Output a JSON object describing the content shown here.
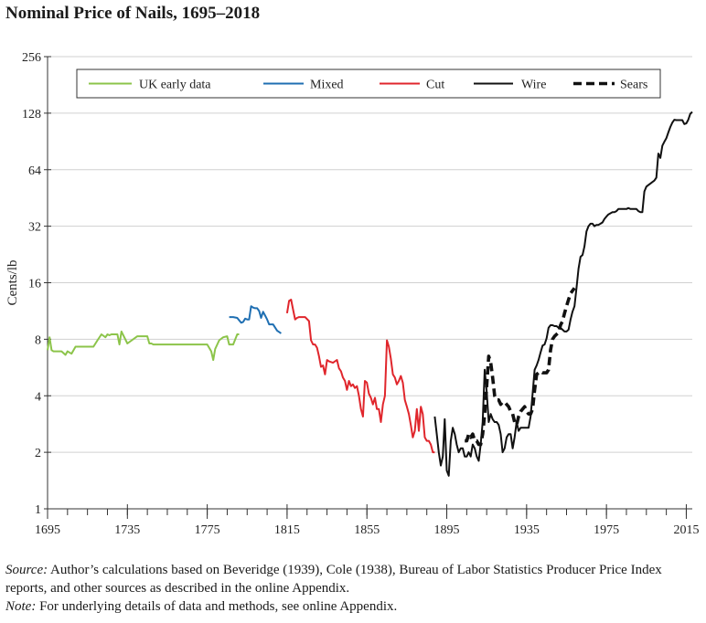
{
  "chart_data": {
    "type": "line",
    "title": "Nominal Price of Nails, 1695–2018",
    "xlabel": "",
    "ylabel": "Cents/lb",
    "yscale": "log2",
    "xlim": [
      1695,
      2018
    ],
    "ylim": [
      1,
      256
    ],
    "x_ticks": [
      "1695",
      "1735",
      "1775",
      "1815",
      "1855",
      "1895",
      "1935",
      "1975",
      "2015"
    ],
    "y_ticks": [
      "1",
      "2",
      "4",
      "8",
      "16",
      "32",
      "64",
      "128",
      "256"
    ],
    "grid": "horizontal",
    "legend_position": "top",
    "series": [
      {
        "name": "UK early data",
        "color": "#8cc44a",
        "dashed": false,
        "x": [
          1695,
          1696,
          1697,
          1698,
          1700,
          1702,
          1704,
          1705,
          1707,
          1709,
          1711,
          1713,
          1715,
          1716,
          1717,
          1718,
          1720,
          1722,
          1724,
          1725,
          1726,
          1727,
          1728,
          1729,
          1730,
          1731,
          1732,
          1735,
          1740,
          1745,
          1746,
          1747,
          1748,
          1750,
          1755,
          1760,
          1765,
          1770,
          1775,
          1777,
          1778,
          1779,
          1781,
          1783,
          1785,
          1786,
          1788,
          1790,
          1791
        ],
        "y": [
          7.0,
          8.2,
          7.0,
          6.9,
          6.9,
          6.9,
          6.6,
          6.9,
          6.7,
          7.3,
          7.3,
          7.3,
          7.3,
          7.3,
          7.3,
          7.3,
          7.9,
          8.5,
          8.2,
          8.5,
          8.4,
          8.5,
          8.5,
          8.5,
          8.5,
          7.5,
          8.8,
          7.6,
          8.3,
          8.3,
          7.6,
          7.6,
          7.5,
          7.5,
          7.5,
          7.5,
          7.5,
          7.5,
          7.5,
          6.9,
          6.2,
          7.1,
          7.9,
          8.2,
          8.3,
          7.5,
          7.5,
          8.5,
          8.5
        ]
      },
      {
        "name": "Mixed",
        "color": "#1f6fb2",
        "dashed": false,
        "x": [
          1786,
          1788,
          1790,
          1791,
          1792,
          1793,
          1794,
          1795,
          1796,
          1797,
          1798,
          1799,
          1800,
          1801,
          1802,
          1803,
          1804,
          1805,
          1806,
          1808,
          1810,
          1812
        ],
        "y": [
          10.5,
          10.5,
          10.4,
          10.1,
          9.8,
          9.9,
          10.3,
          10.2,
          10.2,
          12.0,
          11.8,
          11.7,
          11.7,
          11.3,
          10.4,
          11.2,
          10.7,
          10.2,
          9.6,
          9.6,
          8.9,
          8.6
        ]
      },
      {
        "name": "Cut",
        "color": "#e0262c",
        "dashed": false,
        "x": [
          1815,
          1816,
          1817,
          1818,
          1819,
          1820,
          1821,
          1822,
          1824,
          1826,
          1827,
          1828,
          1829,
          1830,
          1831,
          1832,
          1833,
          1834,
          1835,
          1836,
          1838,
          1840,
          1841,
          1842,
          1843,
          1844,
          1845,
          1846,
          1847,
          1848,
          1849,
          1850,
          1851,
          1852,
          1853,
          1854,
          1855,
          1856,
          1857,
          1858,
          1859,
          1860,
          1861,
          1862,
          1863,
          1864,
          1865,
          1866,
          1867,
          1868,
          1869,
          1870,
          1871,
          1872,
          1873,
          1874,
          1875,
          1876,
          1877,
          1878,
          1879,
          1880,
          1881,
          1882,
          1883,
          1884,
          1885,
          1886,
          1887,
          1888,
          1889
        ],
        "y": [
          11.0,
          12.8,
          13.0,
          11.5,
          10.2,
          10.4,
          10.5,
          10.5,
          10.5,
          10.0,
          7.9,
          7.5,
          7.5,
          7.2,
          6.5,
          5.7,
          5.8,
          5.2,
          6.2,
          6.1,
          6.0,
          6.2,
          5.6,
          5.4,
          5.0,
          4.8,
          4.3,
          4.8,
          4.5,
          4.6,
          4.4,
          4.5,
          4.0,
          3.4,
          3.1,
          4.8,
          4.7,
          4.1,
          3.9,
          3.6,
          3.9,
          3.4,
          3.4,
          2.9,
          3.6,
          4.0,
          7.9,
          7.3,
          6.3,
          5.2,
          5.0,
          4.6,
          4.8,
          5.1,
          4.7,
          3.8,
          3.5,
          3.2,
          2.8,
          2.4,
          2.6,
          3.4,
          2.6,
          3.5,
          3.2,
          2.4,
          2.3,
          2.3,
          2.2,
          2.0,
          2.0
        ]
      },
      {
        "name": "Wire",
        "color": "#111111",
        "dashed": false,
        "x": [
          1889,
          1890,
          1891,
          1892,
          1893,
          1894,
          1895,
          1896,
          1897,
          1898,
          1899,
          1900,
          1901,
          1902,
          1903,
          1904,
          1905,
          1906,
          1907,
          1908,
          1909,
          1910,
          1911,
          1912,
          1913,
          1914,
          1915,
          1916,
          1917,
          1918,
          1919,
          1920,
          1921,
          1922,
          1923,
          1924,
          1925,
          1926,
          1927,
          1928,
          1929,
          1930,
          1931,
          1932,
          1933,
          1934,
          1935,
          1936,
          1937,
          1938,
          1939,
          1940,
          1941,
          1942,
          1943,
          1944,
          1945,
          1946,
          1947,
          1948,
          1949,
          1950,
          1951,
          1952,
          1953,
          1954,
          1955,
          1956,
          1957,
          1958,
          1959,
          1960,
          1961,
          1962,
          1963,
          1964,
          1965,
          1966,
          1967,
          1968,
          1969,
          1970,
          1971,
          1972,
          1973,
          1974,
          1975,
          1976,
          1977,
          1978,
          1979,
          1980,
          1981,
          1982,
          1983,
          1984,
          1985,
          1986,
          1987,
          1988,
          1989,
          1990,
          1991,
          1992,
          1993,
          1994,
          1995,
          1996,
          1997,
          1998,
          1999,
          2000,
          2001,
          2002,
          2003,
          2004,
          2005,
          2006,
          2007,
          2008,
          2009,
          2010,
          2011,
          2012,
          2013,
          2014,
          2015,
          2016,
          2017,
          2018
        ],
        "y": [
          3.1,
          2.5,
          2.0,
          1.7,
          1.9,
          3.0,
          1.6,
          1.5,
          2.3,
          2.7,
          2.5,
          2.2,
          2.0,
          2.1,
          2.1,
          1.9,
          1.9,
          2.0,
          1.9,
          2.2,
          2.1,
          1.9,
          1.8,
          2.2,
          2.9,
          5.5,
          4.2,
          2.9,
          3.2,
          3.0,
          2.9,
          2.9,
          2.8,
          2.5,
          2.0,
          2.1,
          2.4,
          2.5,
          2.5,
          2.1,
          2.4,
          2.9,
          2.6,
          2.7,
          2.7,
          2.7,
          2.7,
          2.7,
          3.1,
          4.1,
          5.5,
          5.8,
          6.2,
          6.8,
          7.4,
          7.5,
          8.1,
          9.2,
          9.5,
          9.5,
          9.4,
          9.4,
          9.2,
          9.2,
          9.0,
          8.8,
          8.8,
          9.0,
          10.2,
          11.2,
          12.0,
          15.0,
          19.0,
          22.0,
          22.5,
          25.0,
          30.0,
          32.0,
          33.0,
          33.0,
          32.0,
          32.5,
          32.5,
          33.0,
          33.5,
          35.0,
          36.0,
          37.0,
          37.5,
          38.0,
          38.0,
          38.5,
          39.5,
          39.5,
          39.5,
          39.5,
          39.5,
          40.0,
          39.5,
          39.5,
          39.5,
          39.5,
          38.5,
          38.0,
          38.0,
          49.0,
          52.0,
          53.0,
          54.0,
          55.0,
          56.0,
          58.0,
          78.0,
          74.0,
          86.0,
          90.0,
          94.0,
          101.0,
          108.0,
          114.0,
          118.0,
          117.5,
          117.5,
          117.5,
          117.5,
          112.0,
          113.0,
          118.0,
          127.0,
          130.0
        ]
      },
      {
        "name": "Sears",
        "color": "#111111",
        "dashed": true,
        "x": [
          1904,
          1905,
          1906,
          1907,
          1908,
          1909,
          1910,
          1911,
          1912,
          1913,
          1914,
          1915,
          1916,
          1917,
          1918,
          1919,
          1920,
          1921,
          1922,
          1923,
          1924,
          1925,
          1926,
          1927,
          1928,
          1929,
          1930,
          1931,
          1932,
          1933,
          1934,
          1935,
          1936,
          1937,
          1938,
          1939,
          1940,
          1941,
          1942,
          1943,
          1944,
          1945,
          1946,
          1947,
          1948,
          1949,
          1950,
          1951,
          1952,
          1953,
          1954,
          1955,
          1956,
          1957,
          1958,
          1959
        ],
        "y": [
          2.3,
          2.3,
          2.5,
          2.4,
          2.5,
          2.3,
          2.3,
          2.2,
          2.2,
          2.5,
          3.2,
          4.5,
          6.5,
          6.0,
          5.0,
          4.0,
          3.8,
          3.8,
          3.6,
          3.7,
          3.7,
          3.6,
          3.5,
          3.3,
          3.2,
          2.9,
          2.8,
          3.1,
          3.3,
          3.4,
          3.5,
          3.3,
          3.2,
          3.2,
          3.4,
          4.3,
          5.2,
          5.3,
          5.4,
          5.3,
          5.3,
          5.3,
          5.5,
          7.0,
          8.0,
          8.3,
          8.5,
          8.7,
          9.5,
          10.0,
          11.0,
          12.0,
          13.0,
          14.0,
          14.5,
          15.0
        ]
      }
    ]
  },
  "notes": {
    "source_label": "Source:",
    "source_text": " Author’s calculations based on Beveridge (1939), Cole (1938), Bureau of Labor Statistics Producer Price Index reports, and other sources as described in the online Appendix.",
    "note_label": "Note:",
    "note_text": " For underlying details of data and methods, see online Appendix."
  }
}
